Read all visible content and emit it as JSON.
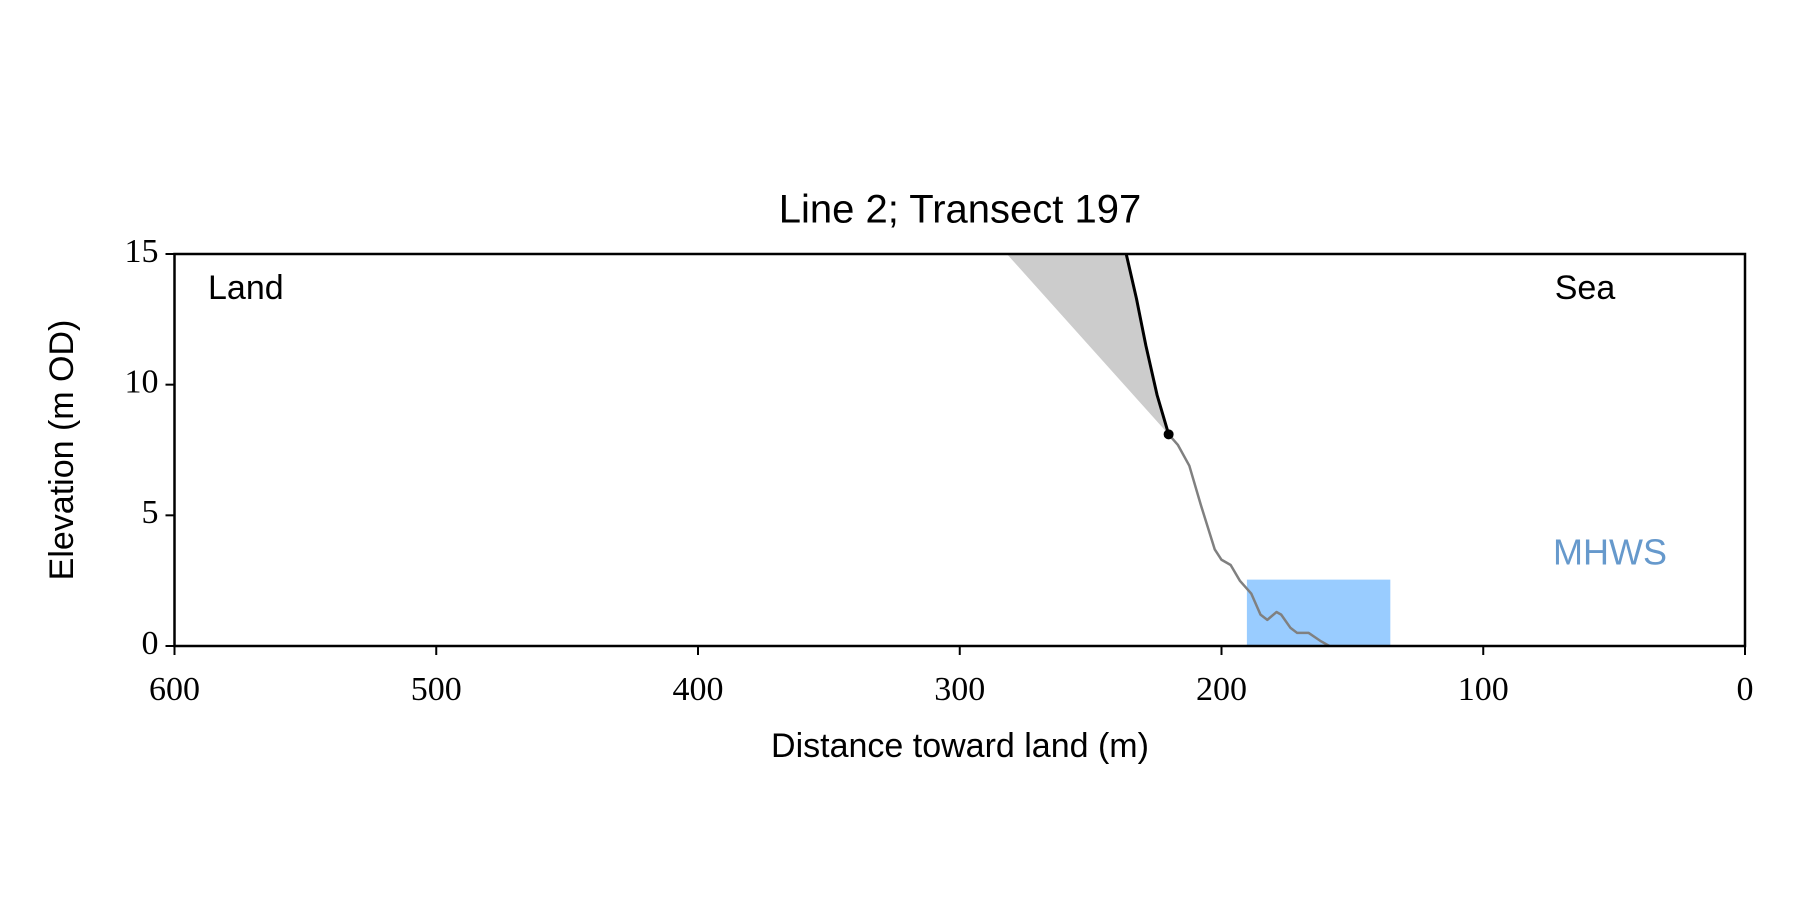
{
  "chart_data": {
    "type": "profile",
    "title": "Line 2; Transect 197",
    "xlabel": "Distance toward land (m)",
    "ylabel": "Elevation (m OD)",
    "xlim": [
      600,
      0
    ],
    "xticks": [
      600,
      500,
      400,
      300,
      200,
      100,
      0
    ],
    "ylim": [
      0,
      15
    ],
    "yticks": [
      0,
      5,
      10,
      15
    ],
    "annotations": {
      "land": "Land",
      "sea": "Sea"
    },
    "series": [
      {
        "color": "#808080",
        "x": [
          220.2,
          216.7,
          212.3,
          207.9,
          202.6,
          200.0,
          196.5,
          193.0,
          188.6,
          185.1,
          182.5,
          179.0,
          177.2,
          173.7,
          171.1,
          166.7,
          162.3,
          158.8
        ],
        "values": [
          8.1,
          7.7,
          6.9,
          5.4,
          3.7,
          3.3,
          3.1,
          2.5,
          2.0,
          1.2,
          1.0,
          1.3,
          1.2,
          0.7,
          0.5,
          0.5,
          0.2,
          0.0
        ]
      },
      {
        "color": "#000000",
        "x": [
          220.2,
          224.6,
          228.9,
          232.5,
          236.4
        ],
        "values": [
          8.1,
          9.6,
          11.5,
          13.3,
          15
        ]
      }
    ],
    "shade": {
      "color": "#cccccc",
      "x": [
        282.0,
        236.4,
        232.5,
        228.9,
        224.6,
        220.2
      ],
      "values": [
        15,
        15,
        13.3,
        11.5,
        9.6,
        8.1
      ]
    },
    "point": {
      "x": 220.2,
      "value": 8.1,
      "color": "#000000"
    },
    "mhws": {
      "label": "MHWS",
      "level": 2.54,
      "x": [
        190.3,
        135.5
      ],
      "color": "#99ccff",
      "label_color": "#6699cc"
    }
  }
}
